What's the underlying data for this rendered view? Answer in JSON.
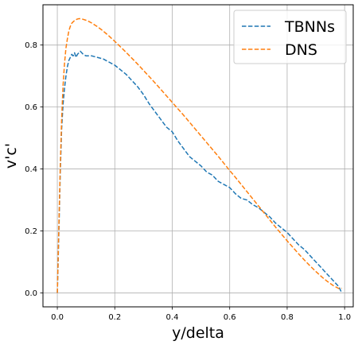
{
  "chart_data": {
    "type": "line",
    "title": "",
    "xlabel": "y/delta",
    "ylabel": "v'c'",
    "xlim": [
      -0.05,
      1.03
    ],
    "ylim": [
      -0.045,
      0.93
    ],
    "xticks": [
      0.0,
      0.2,
      0.4,
      0.6,
      0.8,
      1.0
    ],
    "xtick_labels": [
      "0.0",
      "0.2",
      "0.4",
      "0.6",
      "0.8",
      "1.0"
    ],
    "yticks": [
      0.0,
      0.2,
      0.4,
      0.6,
      0.8
    ],
    "ytick_labels": [
      "0.0",
      "0.2",
      "0.4",
      "0.6",
      "0.8"
    ],
    "grid": true,
    "legend": {
      "location": "upper right"
    },
    "series": [
      {
        "name": "TBNNs",
        "color": "#1f77b4",
        "line_style": "dashed",
        "x": [
          0.0,
          0.005,
          0.01,
          0.015,
          0.02,
          0.025,
          0.03,
          0.035,
          0.04,
          0.045,
          0.05,
          0.055,
          0.06,
          0.065,
          0.07,
          0.075,
          0.08,
          0.085,
          0.09,
          0.1,
          0.12,
          0.14,
          0.16,
          0.18,
          0.2,
          0.22,
          0.24,
          0.26,
          0.28,
          0.3,
          0.32,
          0.34,
          0.36,
          0.38,
          0.4,
          0.42,
          0.44,
          0.46,
          0.48,
          0.5,
          0.52,
          0.54,
          0.56,
          0.58,
          0.6,
          0.62,
          0.64,
          0.66,
          0.68,
          0.7,
          0.72,
          0.74,
          0.76,
          0.78,
          0.8,
          0.82,
          0.84,
          0.86,
          0.88,
          0.9,
          0.92,
          0.94,
          0.96,
          0.98,
          0.99
        ],
        "y": [
          0.0,
          0.18,
          0.38,
          0.53,
          0.61,
          0.66,
          0.7,
          0.73,
          0.75,
          0.76,
          0.77,
          0.765,
          0.775,
          0.76,
          0.77,
          0.775,
          0.78,
          0.775,
          0.77,
          0.765,
          0.765,
          0.76,
          0.755,
          0.745,
          0.735,
          0.72,
          0.705,
          0.685,
          0.665,
          0.64,
          0.61,
          0.585,
          0.56,
          0.535,
          0.52,
          0.49,
          0.465,
          0.44,
          0.425,
          0.41,
          0.39,
          0.38,
          0.36,
          0.35,
          0.34,
          0.32,
          0.305,
          0.3,
          0.285,
          0.275,
          0.26,
          0.245,
          0.225,
          0.21,
          0.195,
          0.175,
          0.155,
          0.14,
          0.12,
          0.1,
          0.08,
          0.06,
          0.04,
          0.02,
          0.0
        ]
      },
      {
        "name": "DNS",
        "color": "#ff7f0e",
        "line_style": "dashed",
        "x": [
          0.0,
          0.005,
          0.01,
          0.015,
          0.02,
          0.025,
          0.03,
          0.035,
          0.04,
          0.045,
          0.05,
          0.055,
          0.06,
          0.065,
          0.07,
          0.075,
          0.08,
          0.085,
          0.09,
          0.1,
          0.11,
          0.12,
          0.13,
          0.14,
          0.15,
          0.16,
          0.18,
          0.2,
          0.22,
          0.24,
          0.26,
          0.28,
          0.3,
          0.32,
          0.34,
          0.36,
          0.38,
          0.4,
          0.42,
          0.44,
          0.46,
          0.48,
          0.5,
          0.52,
          0.54,
          0.56,
          0.58,
          0.6,
          0.62,
          0.64,
          0.66,
          0.68,
          0.7,
          0.72,
          0.74,
          0.76,
          0.78,
          0.8,
          0.82,
          0.84,
          0.86,
          0.88,
          0.9,
          0.92,
          0.94,
          0.96,
          0.98,
          0.99
        ],
        "y": [
          0.0,
          0.2,
          0.4,
          0.56,
          0.67,
          0.74,
          0.79,
          0.82,
          0.845,
          0.86,
          0.87,
          0.875,
          0.879,
          0.882,
          0.884,
          0.885,
          0.885,
          0.884,
          0.883,
          0.88,
          0.876,
          0.871,
          0.865,
          0.859,
          0.852,
          0.845,
          0.829,
          0.812,
          0.794,
          0.776,
          0.757,
          0.738,
          0.718,
          0.698,
          0.678,
          0.657,
          0.636,
          0.615,
          0.594,
          0.573,
          0.551,
          0.529,
          0.507,
          0.485,
          0.463,
          0.441,
          0.418,
          0.395,
          0.373,
          0.35,
          0.327,
          0.304,
          0.281,
          0.258,
          0.235,
          0.212,
          0.19,
          0.168,
          0.147,
          0.126,
          0.106,
          0.087,
          0.069,
          0.052,
          0.037,
          0.024,
          0.014,
          0.015
        ]
      }
    ]
  }
}
